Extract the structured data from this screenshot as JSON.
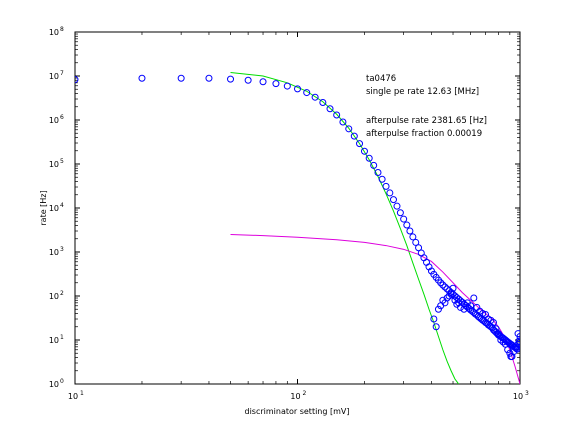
{
  "chart_data": {
    "type": "scatter",
    "title": "",
    "xlabel": "discriminator setting [mV]",
    "ylabel": "rate [Hz]",
    "xscale": "log",
    "yscale": "log",
    "xlim": [
      10,
      1000
    ],
    "ylim": [
      1,
      100000000
    ],
    "grid": false,
    "x_ticks": [
      {
        "value": 10,
        "base": "10",
        "exp": "1"
      },
      {
        "value": 100,
        "base": "10",
        "exp": "2"
      },
      {
        "value": 1000,
        "base": "10",
        "exp": "3"
      }
    ],
    "y_ticks": [
      {
        "value": 1,
        "base": "10",
        "exp": "0"
      },
      {
        "value": 10,
        "base": "10",
        "exp": "1"
      },
      {
        "value": 100,
        "base": "10",
        "exp": "2"
      },
      {
        "value": 1000,
        "base": "10",
        "exp": "3"
      },
      {
        "value": 10000,
        "base": "10",
        "exp": "4"
      },
      {
        "value": 100000,
        "base": "10",
        "exp": "5"
      },
      {
        "value": 1000000,
        "base": "10",
        "exp": "6"
      },
      {
        "value": 10000000,
        "base": "10",
        "exp": "7"
      },
      {
        "value": 100000000,
        "base": "10",
        "exp": "8"
      }
    ],
    "annotations": [
      "ta0476",
      "single pe rate 12.63 [MHz]",
      "afterpulse rate 2381.65 [Hz]",
      "afterpulse fraction 0.00019"
    ],
    "series": [
      {
        "marker": "circle-open",
        "color": "#0000ff",
        "points": [
          [
            10,
            8300000.0
          ],
          [
            20,
            8900000.0
          ],
          [
            30,
            8900000.0
          ],
          [
            40,
            8900000.0
          ],
          [
            50,
            8500000.0
          ],
          [
            60,
            8000000.0
          ],
          [
            70,
            7400000.0
          ],
          [
            80,
            6700000.0
          ],
          [
            90,
            5900000.0
          ],
          [
            100,
            5100000.0
          ],
          [
            110,
            4200000.0
          ],
          [
            120,
            3300000.0
          ],
          [
            130,
            2500000.0
          ],
          [
            140,
            1800000.0
          ],
          [
            150,
            1300000.0
          ],
          [
            160,
            900000.0
          ],
          [
            170,
            630000.0
          ],
          [
            180,
            430000.0
          ],
          [
            190,
            290000.0
          ],
          [
            200,
            195000.0
          ],
          [
            210,
            135000.0
          ],
          [
            220,
            93000.0
          ],
          [
            230,
            64000.0
          ],
          [
            240,
            45000.0
          ],
          [
            250,
            31000.0
          ],
          [
            260,
            22000.0
          ],
          [
            270,
            15500.0
          ],
          [
            280,
            11000.0
          ],
          [
            290,
            7800.0
          ],
          [
            300,
            5600.0
          ],
          [
            310,
            4100.0
          ],
          [
            320,
            3000.0
          ],
          [
            330,
            2200.0
          ],
          [
            340,
            1650.0
          ],
          [
            350,
            1250.0
          ],
          [
            360,
            950
          ],
          [
            370,
            740
          ],
          [
            380,
            580
          ],
          [
            390,
            460
          ],
          [
            400,
            370
          ],
          [
            410,
            310
          ],
          [
            420,
            265
          ],
          [
            430,
            230
          ],
          [
            440,
            200
          ],
          [
            450,
            178
          ],
          [
            460,
            160
          ],
          [
            470,
            145
          ],
          [
            480,
            132
          ],
          [
            490,
            120
          ],
          [
            500,
            110
          ],
          [
            510,
            100
          ],
          [
            520,
            92
          ],
          [
            530,
            85
          ],
          [
            540,
            78
          ],
          [
            550,
            72
          ],
          [
            560,
            66
          ],
          [
            570,
            61
          ],
          [
            580,
            56
          ],
          [
            590,
            52
          ],
          [
            600,
            48
          ],
          [
            610,
            45
          ],
          [
            620,
            42
          ],
          [
            630,
            39
          ],
          [
            640,
            37
          ],
          [
            650,
            34
          ],
          [
            660,
            32
          ],
          [
            670,
            30
          ],
          [
            680,
            28
          ],
          [
            690,
            27
          ],
          [
            700,
            25
          ],
          [
            710,
            24
          ],
          [
            720,
            22
          ],
          [
            730,
            21
          ],
          [
            740,
            20
          ],
          [
            750,
            19
          ],
          [
            760,
            17
          ],
          [
            770,
            16
          ],
          [
            780,
            15
          ],
          [
            790,
            14
          ],
          [
            800,
            13
          ],
          [
            810,
            12.5
          ],
          [
            820,
            12
          ],
          [
            830,
            11.5
          ],
          [
            840,
            11
          ],
          [
            850,
            10.5
          ],
          [
            860,
            10
          ],
          [
            870,
            9.5
          ],
          [
            880,
            9
          ],
          [
            890,
            8.7
          ],
          [
            900,
            8.3
          ],
          [
            910,
            8
          ],
          [
            920,
            7.7
          ],
          [
            930,
            7.4
          ],
          [
            940,
            7
          ],
          [
            950,
            6.8
          ],
          [
            960,
            6.5
          ],
          [
            970,
            6.2
          ],
          [
            980,
            8
          ],
          [
            990,
            9.5
          ],
          [
            1000,
            9
          ],
          [
            410,
            30
          ],
          [
            420,
            20
          ],
          [
            430,
            50
          ],
          [
            440,
            60
          ],
          [
            450,
            80
          ],
          [
            460,
            70
          ],
          [
            470,
            90
          ],
          [
            480,
            100
          ],
          [
            490,
            110
          ],
          [
            500,
            150
          ],
          [
            510,
            80
          ],
          [
            520,
            65
          ],
          [
            530,
            70
          ],
          [
            540,
            55
          ],
          [
            560,
            50
          ],
          [
            580,
            70
          ],
          [
            600,
            60
          ],
          [
            620,
            90
          ],
          [
            640,
            55
          ],
          [
            660,
            45
          ],
          [
            680,
            40
          ],
          [
            700,
            38
          ],
          [
            720,
            30
          ],
          [
            740,
            28
          ],
          [
            760,
            25
          ],
          [
            780,
            18
          ],
          [
            800,
            14
          ],
          [
            820,
            10
          ],
          [
            840,
            9
          ],
          [
            860,
            8
          ],
          [
            880,
            6
          ],
          [
            900,
            5
          ],
          [
            910,
            4.2
          ],
          [
            920,
            4.2
          ],
          [
            940,
            5.5
          ],
          [
            960,
            7
          ],
          [
            980,
            14
          ],
          [
            1000,
            12
          ]
        ]
      },
      {
        "kind": "line",
        "color": "#00dd00",
        "points": [
          [
            50,
            12000000.0
          ],
          [
            70,
            10000000.0
          ],
          [
            90,
            7000000.0
          ],
          [
            110,
            4500000.0
          ],
          [
            130,
            2600000.0
          ],
          [
            150,
            1350000.0
          ],
          [
            170,
            650000.0
          ],
          [
            190,
            290000.0
          ],
          [
            210,
            125000.0
          ],
          [
            230,
            52000.0
          ],
          [
            250,
            21000.0
          ],
          [
            270,
            8500.0
          ],
          [
            290,
            3400.0
          ],
          [
            310,
            1400.0
          ],
          [
            330,
            560
          ],
          [
            350,
            240
          ],
          [
            370,
            110
          ],
          [
            390,
            50
          ],
          [
            410,
            25
          ],
          [
            430,
            12
          ],
          [
            450,
            6
          ],
          [
            470,
            3.3
          ],
          [
            490,
            2.0
          ],
          [
            510,
            1.3
          ],
          [
            530,
            1.0
          ]
        ]
      },
      {
        "kind": "line",
        "color": "#dd00dd",
        "points": [
          [
            50,
            2500
          ],
          [
            70,
            2360
          ],
          [
            100,
            2170
          ],
          [
            150,
            1900
          ],
          [
            200,
            1650
          ],
          [
            250,
            1400
          ],
          [
            300,
            1150
          ],
          [
            350,
            880
          ],
          [
            400,
            610
          ],
          [
            450,
            350
          ],
          [
            500,
            200
          ],
          [
            550,
            120
          ],
          [
            600,
            80
          ],
          [
            650,
            55
          ],
          [
            700,
            40
          ],
          [
            750,
            30
          ],
          [
            800,
            20
          ],
          [
            850,
            12
          ],
          [
            900,
            6
          ],
          [
            950,
            2.5
          ],
          [
            1000,
            1
          ]
        ]
      }
    ]
  }
}
